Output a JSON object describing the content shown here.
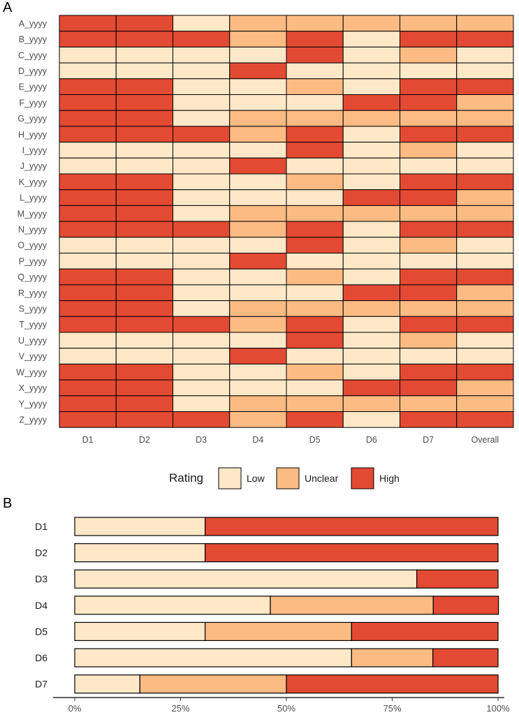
{
  "colors": {
    "Low": "#fee8c8",
    "Unclear": "#fdbb84",
    "High": "#e34a33"
  },
  "chart_data": [
    {
      "panel": "A",
      "type": "heatmap",
      "title": "",
      "columns": [
        "D1",
        "D2",
        "D3",
        "D4",
        "D5",
        "D6",
        "D7",
        "Overall"
      ],
      "rows": [
        "A_yyyy",
        "B_yyyy",
        "C_yyyy",
        "D_yyyy",
        "E_yyyy",
        "F_yyyy",
        "G_yyyy",
        "H_yyyy",
        "I_yyyy",
        "J_yyyy",
        "K_yyyy",
        "L_yyyy",
        "M_yyyy",
        "N_yyyy",
        "O_yyyy",
        "P_yyyy",
        "Q_yyyy",
        "R_yyyy",
        "S_yyyy",
        "T_yyyy",
        "U_yyyy",
        "V_yyyy",
        "W_yyyy",
        "X_yyyy",
        "Y_yyyy",
        "Z_yyyy"
      ],
      "values": [
        [
          "High",
          "High",
          "Low",
          "Unclear",
          "Unclear",
          "Unclear",
          "Unclear",
          "Unclear"
        ],
        [
          "High",
          "High",
          "High",
          "Unclear",
          "High",
          "Low",
          "High",
          "High"
        ],
        [
          "Low",
          "Low",
          "Low",
          "Low",
          "High",
          "Low",
          "Unclear",
          "Low"
        ],
        [
          "Low",
          "Low",
          "Low",
          "High",
          "Low",
          "Low",
          "Low",
          "Low"
        ],
        [
          "High",
          "High",
          "Low",
          "Low",
          "Unclear",
          "Low",
          "High",
          "High"
        ],
        [
          "High",
          "High",
          "Low",
          "Low",
          "Low",
          "High",
          "High",
          "Unclear"
        ],
        [
          "High",
          "High",
          "Low",
          "Unclear",
          "Unclear",
          "Unclear",
          "Unclear",
          "Unclear"
        ],
        [
          "High",
          "High",
          "High",
          "Unclear",
          "High",
          "Low",
          "High",
          "High"
        ],
        [
          "Low",
          "Low",
          "Low",
          "Low",
          "High",
          "Low",
          "Unclear",
          "Low"
        ],
        [
          "Low",
          "Low",
          "Low",
          "High",
          "Low",
          "Low",
          "Low",
          "Low"
        ],
        [
          "High",
          "High",
          "Low",
          "Low",
          "Unclear",
          "Low",
          "High",
          "High"
        ],
        [
          "High",
          "High",
          "Low",
          "Low",
          "Low",
          "High",
          "High",
          "Unclear"
        ],
        [
          "High",
          "High",
          "Low",
          "Unclear",
          "Unclear",
          "Unclear",
          "Unclear",
          "Unclear"
        ],
        [
          "High",
          "High",
          "High",
          "Unclear",
          "High",
          "Low",
          "High",
          "High"
        ],
        [
          "Low",
          "Low",
          "Low",
          "Low",
          "High",
          "Low",
          "Unclear",
          "Low"
        ],
        [
          "Low",
          "Low",
          "Low",
          "High",
          "Low",
          "Low",
          "Low",
          "Low"
        ],
        [
          "High",
          "High",
          "Low",
          "Low",
          "Unclear",
          "Low",
          "High",
          "High"
        ],
        [
          "High",
          "High",
          "Low",
          "Low",
          "Low",
          "High",
          "High",
          "Unclear"
        ],
        [
          "High",
          "High",
          "Low",
          "Unclear",
          "Unclear",
          "Unclear",
          "Unclear",
          "Unclear"
        ],
        [
          "High",
          "High",
          "High",
          "Unclear",
          "High",
          "Low",
          "High",
          "High"
        ],
        [
          "Low",
          "Low",
          "Low",
          "Low",
          "High",
          "Low",
          "Unclear",
          "Low"
        ],
        [
          "Low",
          "Low",
          "Low",
          "High",
          "Low",
          "Low",
          "Low",
          "Low"
        ],
        [
          "High",
          "High",
          "Low",
          "Low",
          "Unclear",
          "Low",
          "High",
          "High"
        ],
        [
          "High",
          "High",
          "Low",
          "Low",
          "Low",
          "High",
          "High",
          "Unclear"
        ],
        [
          "High",
          "High",
          "Low",
          "Unclear",
          "Unclear",
          "Unclear",
          "Unclear",
          "Unclear"
        ],
        [
          "High",
          "High",
          "High",
          "Unclear",
          "High",
          "Low",
          "High",
          "High"
        ]
      ],
      "legend": {
        "title": "Rating",
        "entries": [
          "Low",
          "Unclear",
          "High"
        ],
        "position": "bottom"
      }
    },
    {
      "panel": "B",
      "type": "bar",
      "orientation": "horizontal",
      "stacked": true,
      "categories": [
        "D1",
        "D2",
        "D3",
        "D4",
        "D5",
        "D6",
        "D7"
      ],
      "series": [
        {
          "name": "Low",
          "values": [
            30.8,
            30.8,
            80.8,
            46.2,
            30.8,
            65.4,
            15.4
          ]
        },
        {
          "name": "Unclear",
          "values": [
            0,
            0,
            0,
            38.5,
            34.6,
            19.2,
            34.6
          ]
        },
        {
          "name": "High",
          "values": [
            69.2,
            69.2,
            19.2,
            15.4,
            34.6,
            15.4,
            50.0
          ]
        }
      ],
      "xlim": [
        0,
        100
      ],
      "ticks": [
        "0%",
        "25%",
        "50%",
        "75%",
        "100%"
      ],
      "tick_values": [
        0,
        25,
        50,
        75,
        100
      ],
      "xlabel": "",
      "ylabel": ""
    }
  ]
}
